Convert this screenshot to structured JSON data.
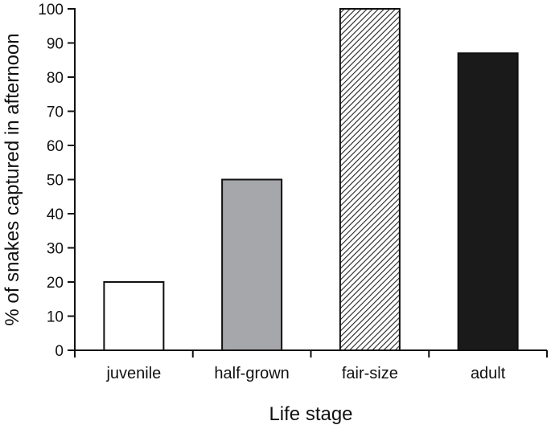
{
  "chart_data": {
    "type": "bar",
    "title": "",
    "xlabel": "Life stage",
    "ylabel": "% of snakes captured in afternoon",
    "categories": [
      "juvenile",
      "half-grown",
      "fair-size",
      "adult"
    ],
    "values": [
      20,
      50,
      100,
      87
    ],
    "ylim": [
      0,
      100
    ],
    "yticks": [
      0,
      10,
      20,
      30,
      40,
      50,
      60,
      70,
      80,
      90,
      100
    ],
    "grid": false,
    "bar_styles": [
      "white",
      "gray",
      "hatched",
      "black"
    ],
    "colors": {
      "stroke": "#111111",
      "gray_fill": "#a6a7aa",
      "black_fill": "#1a1a1a",
      "white_fill": "#ffffff"
    }
  }
}
